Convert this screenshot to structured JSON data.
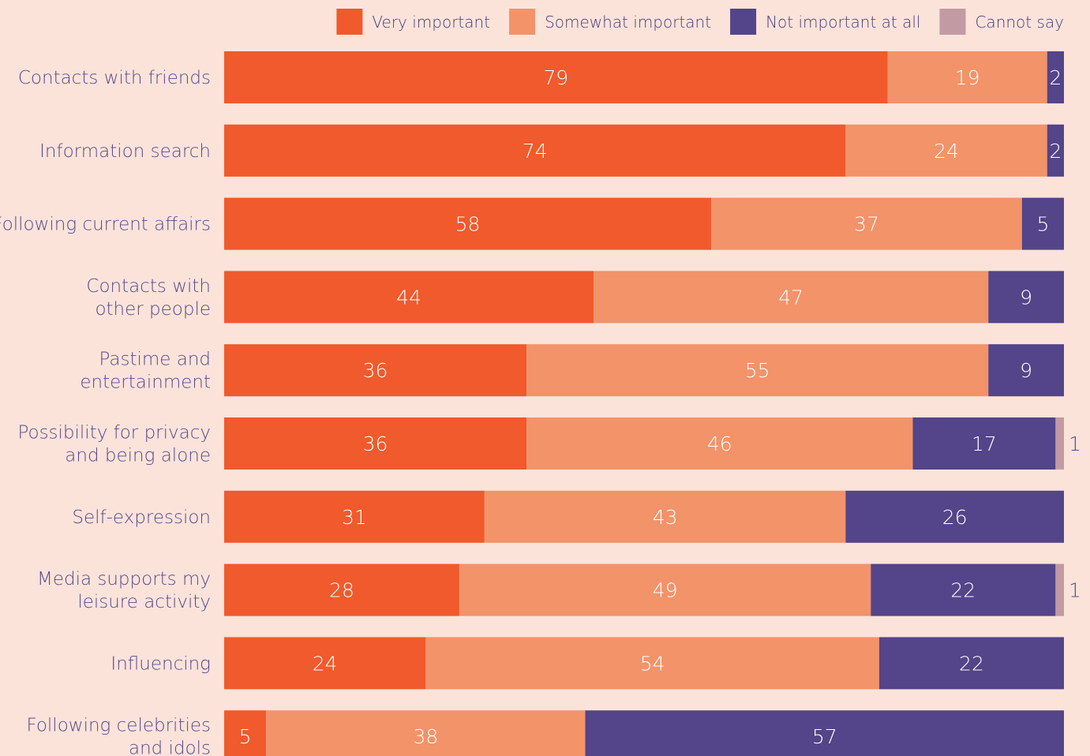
{
  "chart_data": {
    "type": "bar",
    "orientation": "horizontal",
    "stacked": true,
    "xlim": [
      0,
      100
    ],
    "legend_position": "top-right",
    "series": [
      {
        "name": "Very important",
        "color": "#f05a2c",
        "values": [
          79,
          74,
          58,
          44,
          36,
          36,
          31,
          28,
          24,
          5
        ]
      },
      {
        "name": "Somewhat important",
        "color": "#f2936a",
        "values": [
          19,
          24,
          37,
          47,
          55,
          46,
          43,
          49,
          54,
          38
        ]
      },
      {
        "name": "Not important at all",
        "color": "#544489",
        "values": [
          2,
          2,
          5,
          9,
          9,
          17,
          26,
          22,
          22,
          57
        ]
      },
      {
        "name": "Cannot say",
        "color": "#c29aa3",
        "values": [
          0,
          0,
          0,
          0,
          0,
          1,
          0,
          1,
          0,
          0
        ]
      }
    ],
    "categories": [
      [
        "Contacts with friends"
      ],
      [
        "Information search"
      ],
      [
        "Following current affairs"
      ],
      [
        "Contacts with",
        "other people"
      ],
      [
        "Pastime and",
        "entertainment"
      ],
      [
        "Possibility for privacy",
        "and being alone"
      ],
      [
        "Self-expression"
      ],
      [
        "Media supports my",
        "leisure activity"
      ],
      [
        "Influencing"
      ],
      [
        "Following celebrities",
        "and idols"
      ]
    ]
  }
}
